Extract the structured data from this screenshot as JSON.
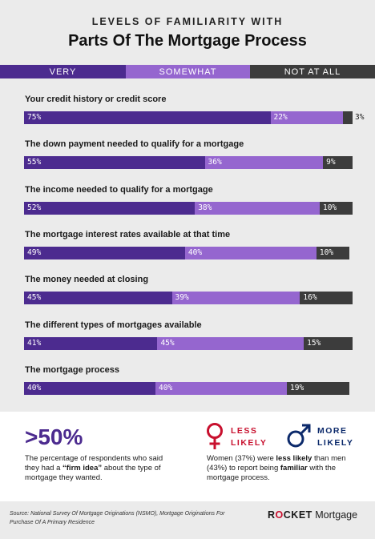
{
  "supertitle": "LEVELS OF FAMILIARITY WITH",
  "title": "Parts Of The Mortgage Process",
  "colors": {
    "very": "#4c2b8f",
    "somewhat": "#9566cf",
    "not_at_all": "#3c3c3c",
    "women": "#c8102e",
    "men": "#0c2a6b"
  },
  "chart_data": {
    "type": "bar",
    "orientation": "horizontal-stacked-100",
    "legend_position": "top",
    "series": [
      {
        "name": "VERY",
        "values": [
          75,
          55,
          52,
          49,
          45,
          41,
          40
        ]
      },
      {
        "name": "SOMEWHAT",
        "values": [
          22,
          36,
          38,
          40,
          39,
          45,
          40
        ]
      },
      {
        "name": "NOT AT ALL",
        "values": [
          3,
          9,
          10,
          10,
          16,
          15,
          19
        ]
      }
    ],
    "categories": [
      "Your credit history or credit score",
      "The down payment needed to qualify for a mortgage",
      "The income needed to qualify for a mortgage",
      "The mortgage interest rates available at that time",
      "The money needed at closing",
      "The different types of mortgages available",
      "The mortgage process"
    ],
    "value_labels": [
      [
        "75%",
        "22%",
        "3%"
      ],
      [
        "55%",
        "36%",
        "9%"
      ],
      [
        "52%",
        "38%",
        "10%"
      ],
      [
        "49%",
        "40%",
        "10%"
      ],
      [
        "45%",
        "39%",
        "16%"
      ],
      [
        "41%",
        "45%",
        "15%"
      ],
      [
        "40%",
        "40%",
        "19%"
      ]
    ]
  },
  "stat": {
    "big": ">50%",
    "text_before": "The percentage of respondents who said they had a ",
    "text_bold": "“firm idea”",
    "text_after": " about the type of mortgage they wanted."
  },
  "gender": {
    "women_label_1": "LESS",
    "women_label_2": "LIKELY",
    "men_label_1": "MORE",
    "men_label_2": "LIKELY",
    "text_1": "Women (37%) were ",
    "text_bold_1": "less likely",
    "text_2": " than men (43%) to report being ",
    "text_bold_2": "familiar",
    "text_3": " with the mortgage process."
  },
  "source": "Source: National Survey Of Mortgage Originations (NSMO), Mortgage Originations For Purchase Of A Primary Residence",
  "brand": {
    "part1": "R",
    "part_o": "O",
    "part2": "CKET",
    "part3": " Mortgage"
  }
}
